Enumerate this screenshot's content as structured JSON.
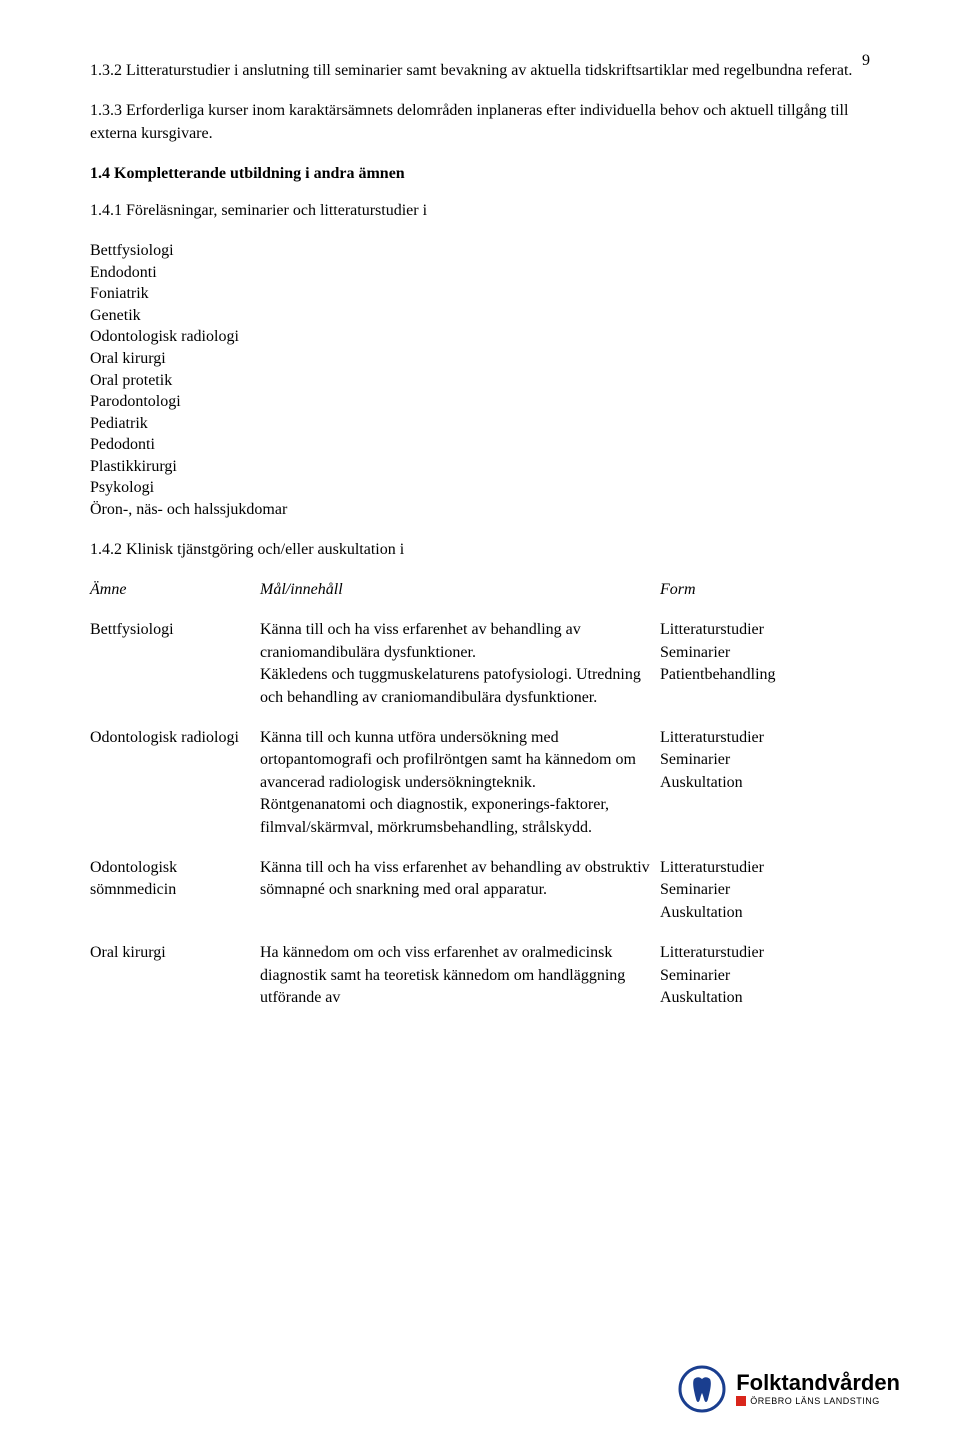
{
  "page_number": "9",
  "p1": "1.3.2 Litteraturstudier i anslutning till seminarier samt bevakning av aktuella tidskriftsartiklar med regelbundna referat.",
  "p2": "1.3.3 Erforderliga kurser inom karaktärsämnets delområden inplaneras efter individuella behov och aktuell tillgång till externa kursgivare.",
  "h14": "1.4  Kompletterande utbildning i andra ämnen",
  "p141": "1.4.1 Föreläsningar, seminarier och litteraturstudier i",
  "subjects": [
    "Bettfysiologi",
    "Endodonti",
    "Foniatrik",
    "Genetik",
    "Odontologisk radiologi",
    "Oral kirurgi",
    "Oral protetik",
    "Parodontologi",
    "Pediatrik",
    "Pedodonti",
    "Plastikkirurgi",
    "Psykologi",
    "Öron-, näs- och halssjukdomar"
  ],
  "p142": "1.4.2 Klinisk tjänstgöring och/eller auskultation i",
  "table_header": {
    "a": "Ämne",
    "b": "Mål/innehåll",
    "c": "Form"
  },
  "rows": [
    {
      "a": "Bettfysiologi",
      "b": "Känna till och ha viss erfarenhet av behandling av craniomandibulära dysfunktioner.\nKäkledens och tuggmuskelaturens patofysiologi. Utredning och behandling av craniomandibulära dysfunktioner.",
      "c": "Litteraturstudier\nSeminarier\nPatientbehandling"
    },
    {
      "a": "Odontologisk radiologi",
      "b": "Känna till och kunna utföra undersökning med ortopantomografi och profilröntgen samt ha kännedom om avancerad radiologisk undersökningteknik.\nRöntgenanatomi och diagnostik, exponerings-faktorer, filmval/skärmval, mörkrumsbehandling, strålskydd.",
      "c": "Litteraturstudier\nSeminarier\nAuskultation"
    },
    {
      "a": "Odontologisk sömnmedicin",
      "b": "Känna till och ha viss erfarenhet av behandling av obstruktiv sömnapné och snarkning med oral apparatur.",
      "c": "Litteraturstudier\nSeminarier\nAuskultation"
    },
    {
      "a": "Oral kirurgi",
      "b": "Ha kännedom  om och viss erfarenhet av oralmedicinsk diagnostik samt ha teoretisk kännedom om handläggning utförande av",
      "c": "Litteraturstudier\nSeminarier\nAuskultation"
    }
  ],
  "logo": {
    "word": "Folktandvården",
    "sub": "ÖREBRO LÄNS LANDSTING",
    "color_red": "#d9261c",
    "color_blue": "#1a3e8f"
  }
}
